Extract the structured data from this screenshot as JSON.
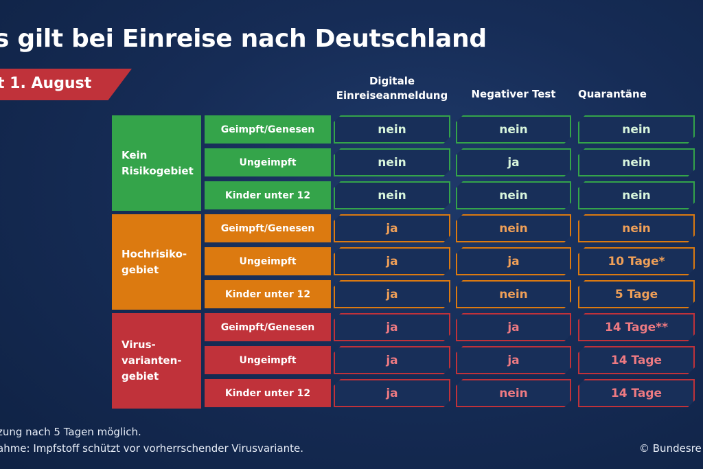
{
  "title": "s gilt bei Einreise nach Deutschland",
  "date_banner": "t 1. August",
  "columns": [
    {
      "line1": "Digitale",
      "line2": "Einreiseanmeldung"
    },
    {
      "line1": "Negativer Test",
      "line2": ""
    },
    {
      "line1": "Quarantäne",
      "line2": ""
    }
  ],
  "colors": {
    "green": "#34a44a",
    "green_text": "#d8f5dc",
    "orange": "#dc7a10",
    "orange_text": "#f0a058",
    "red": "#c0323a",
    "red_text": "#ee7a82"
  },
  "groups": [
    {
      "line1": "Kein",
      "line2": "Risikogebiet",
      "line3": "",
      "rows": [
        {
          "label": "Geimpft/Genesen",
          "values": [
            "nein",
            "nein",
            "nein"
          ]
        },
        {
          "label": "Ungeimpft",
          "values": [
            "nein",
            "ja",
            "nein"
          ]
        },
        {
          "label": "Kinder unter 12",
          "values": [
            "nein",
            "nein",
            "nein"
          ]
        }
      ]
    },
    {
      "line1": "Hochrisiko-",
      "line2": "gebiet",
      "line3": "",
      "rows": [
        {
          "label": "Geimpft/Genesen",
          "values": [
            "ja",
            "nein",
            "nein"
          ]
        },
        {
          "label": "Ungeimpft",
          "values": [
            "ja",
            "ja",
            "10 Tage*"
          ]
        },
        {
          "label": "Kinder unter 12",
          "values": [
            "ja",
            "nein",
            "5 Tage"
          ]
        }
      ]
    },
    {
      "line1": "Virus-",
      "line2": "varianten-",
      "line3": "gebiet",
      "rows": [
        {
          "label": "Geimpft/Genesen",
          "values": [
            "ja",
            "ja",
            "14 Tage**"
          ]
        },
        {
          "label": "Ungeimpft",
          "values": [
            "ja",
            "ja",
            "14 Tage"
          ]
        },
        {
          "label": "Kinder unter 12",
          "values": [
            "ja",
            "nein",
            "14 Tage"
          ]
        }
      ]
    }
  ],
  "footnotes": [
    "zung nach 5 Tagen möglich.",
    "ahme: Impfstoff schützt vor vorherrschender Virusvariante."
  ],
  "credit": "© Bundesre"
}
